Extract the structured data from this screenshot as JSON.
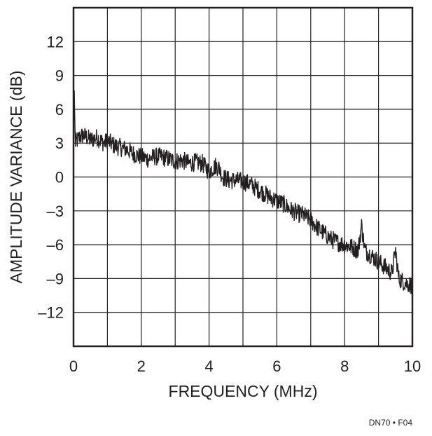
{
  "chart_data": {
    "type": "line",
    "title": "",
    "xlabel": "FREQUENCY (MHz)",
    "ylabel": "AMPLITUDE VARIANCE (dB)",
    "xlim": [
      0,
      10
    ],
    "ylim": [
      -15,
      15
    ],
    "x_ticks": [
      0,
      2,
      4,
      6,
      8,
      10
    ],
    "x_tick_labels": [
      "0",
      "2",
      "4",
      "6",
      "8",
      "10"
    ],
    "y_ticks": [
      12,
      9,
      6,
      3,
      0,
      -3,
      -6,
      -9,
      -12
    ],
    "y_tick_labels": [
      "12",
      "9",
      "6",
      "3",
      "0",
      "–3",
      "–6",
      "–9",
      "–12"
    ],
    "grid": true,
    "grid_x_step": 1,
    "grid_y_step": 3,
    "line_color": "#231f20",
    "series": [
      {
        "x": [
          0.0,
          0.02,
          0.05,
          0.1,
          0.2,
          0.3,
          0.4,
          0.5,
          0.6,
          0.7,
          0.8,
          0.9,
          1.0,
          1.2,
          1.4,
          1.6,
          1.8,
          2.0,
          2.2,
          2.4,
          2.6,
          2.8,
          3.0,
          3.2,
          3.4,
          3.6,
          3.8,
          4.0,
          4.2,
          4.3,
          4.4,
          4.6,
          4.8,
          5.0,
          5.2,
          5.4,
          5.6,
          5.8,
          6.0,
          6.2,
          6.4,
          6.6,
          6.8,
          7.0,
          7.2,
          7.4,
          7.6,
          7.8,
          8.0,
          8.2,
          8.4,
          8.5,
          8.6,
          8.8,
          9.0,
          9.2,
          9.4,
          9.5,
          9.6,
          9.8,
          10.0
        ],
        "y": [
          3.0,
          8.0,
          3.0,
          3.2,
          3.6,
          3.7,
          3.5,
          3.3,
          3.4,
          3.5,
          3.2,
          3.0,
          3.2,
          2.8,
          2.6,
          2.4,
          2.0,
          1.8,
          1.6,
          1.8,
          1.8,
          1.6,
          1.4,
          1.5,
          1.2,
          1.3,
          1.2,
          0.5,
          1.0,
          0.8,
          0.0,
          -0.3,
          -0.3,
          -0.4,
          -0.6,
          -1.0,
          -1.4,
          -1.8,
          -2.1,
          -2.4,
          -2.9,
          -3.2,
          -3.4,
          -3.8,
          -4.5,
          -5.0,
          -5.5,
          -5.8,
          -6.0,
          -6.2,
          -6.5,
          -4.3,
          -6.5,
          -7.0,
          -7.5,
          -8.0,
          -8.5,
          -6.5,
          -9.0,
          -9.4,
          -9.6
        ]
      }
    ]
  },
  "figure_id": "DN70 • F04"
}
